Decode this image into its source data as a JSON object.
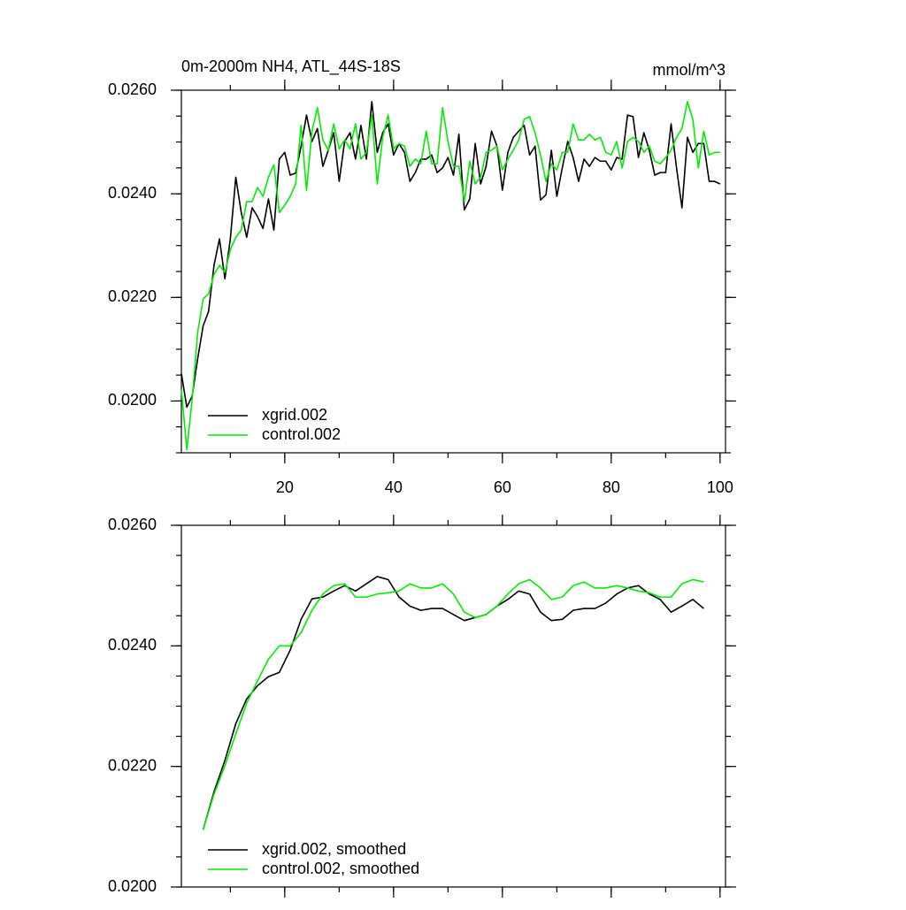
{
  "chart_data": [
    {
      "type": "line",
      "title": "0m-2000m NH4, ATL_44S-18S",
      "units": "mmol/m^3",
      "x": [
        1,
        2,
        3,
        4,
        5,
        6,
        7,
        8,
        9,
        10,
        11,
        12,
        13,
        14,
        15,
        16,
        17,
        18,
        19,
        20,
        21,
        22,
        23,
        24,
        25,
        26,
        27,
        28,
        29,
        30,
        31,
        32,
        33,
        34,
        35,
        36,
        37,
        38,
        39,
        40,
        41,
        42,
        43,
        44,
        45,
        46,
        47,
        48,
        49,
        50,
        51,
        52,
        53,
        54,
        55,
        56,
        57,
        58,
        59,
        60,
        61,
        62,
        63,
        64,
        65,
        66,
        67,
        68,
        69,
        70,
        71,
        72,
        73,
        74,
        75,
        76,
        77,
        78,
        79,
        80,
        81,
        82,
        83,
        84,
        85,
        86,
        87,
        88,
        89,
        90,
        91,
        92,
        93,
        94,
        95,
        96,
        97,
        98,
        99,
        100
      ],
      "series": [
        {
          "name": "xgrid.002",
          "color": "#000000",
          "values": [
            0.02053,
            0.01988,
            0.0201,
            0.02082,
            0.02145,
            0.02173,
            0.02262,
            0.02313,
            0.02236,
            0.02313,
            0.02432,
            0.02364,
            0.02316,
            0.02373,
            0.02356,
            0.02333,
            0.0239,
            0.0233,
            0.02467,
            0.0248,
            0.02436,
            0.0244,
            0.02492,
            0.02552,
            0.02501,
            0.02526,
            0.02453,
            0.02484,
            0.02518,
            0.02424,
            0.02501,
            0.02518,
            0.02467,
            0.02532,
            0.02467,
            0.02578,
            0.0248,
            0.02518,
            0.02535,
            0.02475,
            0.02497,
            0.0248,
            0.02424,
            0.02441,
            0.02467,
            0.02467,
            0.02475,
            0.02441,
            0.0245,
            0.0247,
            0.02436,
            0.02515,
            0.02369,
            0.0239,
            0.02497,
            0.02419,
            0.02453,
            0.02521,
            0.02492,
            0.02407,
            0.0248,
            0.02509,
            0.02521,
            0.02532,
            0.02475,
            0.02492,
            0.02388,
            0.02398,
            0.02484,
            0.02395,
            0.0245,
            0.02501,
            0.0247,
            0.02424,
            0.02467,
            0.02453,
            0.0247,
            0.02463,
            0.02463,
            0.02446,
            0.0247,
            0.02467,
            0.02552,
            0.02549,
            0.0247,
            0.02518,
            0.02484,
            0.02436,
            0.02441,
            0.02441,
            0.02535,
            0.0245,
            0.02373,
            0.02509,
            0.0248,
            0.02497,
            0.02497,
            0.02424,
            0.02424,
            0.02419
          ]
        },
        {
          "name": "control.002",
          "color": "#00ee00",
          "values": [
            0.02022,
            0.01906,
            0.02005,
            0.02133,
            0.02197,
            0.02207,
            0.02244,
            0.02262,
            0.02248,
            0.02292,
            0.02316,
            0.0233,
            0.02385,
            0.02385,
            0.02412,
            0.02395,
            0.02432,
            0.02456,
            0.02364,
            0.02378,
            0.02395,
            0.02419,
            0.02532,
            0.02407,
            0.02521,
            0.02566,
            0.02504,
            0.02484,
            0.02535,
            0.02487,
            0.02504,
            0.02487,
            0.02535,
            0.02467,
            0.0248,
            0.02552,
            0.02419,
            0.02509,
            0.02552,
            0.02487,
            0.02497,
            0.02492,
            0.02453,
            0.02467,
            0.02458,
            0.02521,
            0.02458,
            0.02458,
            0.02566,
            0.02501,
            0.02453,
            0.02453,
            0.02385,
            0.02463,
            0.02419,
            0.02432,
            0.0248,
            0.02484,
            0.02492,
            0.02446,
            0.02467,
            0.02484,
            0.02504,
            0.02544,
            0.02549,
            0.02518,
            0.02475,
            0.02424,
            0.02458,
            0.02446,
            0.0248,
            0.0248,
            0.02535,
            0.02504,
            0.02504,
            0.02515,
            0.02504,
            0.02509,
            0.0248,
            0.02475,
            0.02501,
            0.0245,
            0.02501,
            0.02509,
            0.02501,
            0.0248,
            0.02492,
            0.02463,
            0.02458,
            0.0247,
            0.02484,
            0.02509,
            0.02526,
            0.02578,
            0.02544,
            0.0245,
            0.02521,
            0.02475,
            0.0248,
            0.0248
          ]
        }
      ],
      "xlim": [
        1,
        101
      ],
      "ylim": [
        0.019,
        0.026
      ],
      "xticks": [
        20,
        40,
        60,
        80,
        100
      ],
      "yticks": [
        {
          "value": 0.02,
          "label": "0.0200"
        },
        {
          "value": 0.022,
          "label": "0.0220"
        },
        {
          "value": 0.024,
          "label": "0.0240"
        },
        {
          "value": 0.026,
          "label": "0.0260"
        }
      ],
      "xtick_labels": true,
      "legend": "lower left"
    },
    {
      "type": "line",
      "x": [
        5,
        7,
        9,
        11,
        13,
        15,
        17,
        19,
        21,
        23,
        25,
        27,
        29,
        31,
        33,
        35,
        37,
        39,
        41,
        43,
        45,
        47,
        49,
        51,
        53,
        55,
        57,
        59,
        61,
        63,
        65,
        67,
        69,
        71,
        73,
        75,
        77,
        79,
        81,
        83,
        85,
        87,
        89,
        91,
        93,
        95,
        97
      ],
      "series": [
        {
          "name": "xgrid.002, smoothed",
          "color": "#000000",
          "values": [
            0.02095,
            0.02158,
            0.0221,
            0.02271,
            0.02312,
            0.02334,
            0.02349,
            0.02356,
            0.02393,
            0.02444,
            0.02478,
            0.02481,
            0.02491,
            0.025,
            0.02491,
            0.02503,
            0.02515,
            0.0251,
            0.02481,
            0.02466,
            0.02459,
            0.02462,
            0.02462,
            0.02452,
            0.02442,
            0.02447,
            0.02452,
            0.02466,
            0.02477,
            0.02491,
            0.02486,
            0.02456,
            0.02442,
            0.02444,
            0.02459,
            0.02462,
            0.02462,
            0.02471,
            0.02486,
            0.02496,
            0.025,
            0.02486,
            0.02477,
            0.02456,
            0.02466,
            0.02477,
            0.02462
          ]
        },
        {
          "name": "control.002, smoothed",
          "color": "#00ee00",
          "values": [
            0.02095,
            0.02154,
            0.02201,
            0.02254,
            0.02305,
            0.02342,
            0.02378,
            0.024,
            0.024,
            0.02422,
            0.02459,
            0.02486,
            0.025,
            0.02503,
            0.02481,
            0.02481,
            0.02486,
            0.02488,
            0.02491,
            0.02503,
            0.02496,
            0.02496,
            0.02503,
            0.02486,
            0.02456,
            0.02447,
            0.02452,
            0.02466,
            0.02486,
            0.02503,
            0.0251,
            0.02496,
            0.02477,
            0.02481,
            0.025,
            0.02506,
            0.02496,
            0.02496,
            0.025,
            0.02496,
            0.02491,
            0.02488,
            0.02481,
            0.02481,
            0.02503,
            0.0251,
            0.02506
          ]
        }
      ],
      "xlim": [
        1,
        101
      ],
      "ylim": [
        0.02,
        0.026
      ],
      "xticks": [
        20,
        40,
        60,
        80,
        100
      ],
      "yticks": [
        {
          "value": 0.02,
          "label": "0.0200"
        },
        {
          "value": 0.022,
          "label": "0.0220"
        },
        {
          "value": 0.024,
          "label": "0.0240"
        },
        {
          "value": 0.026,
          "label": "0.0260"
        }
      ],
      "xtick_labels": false,
      "legend": "lower left"
    }
  ]
}
